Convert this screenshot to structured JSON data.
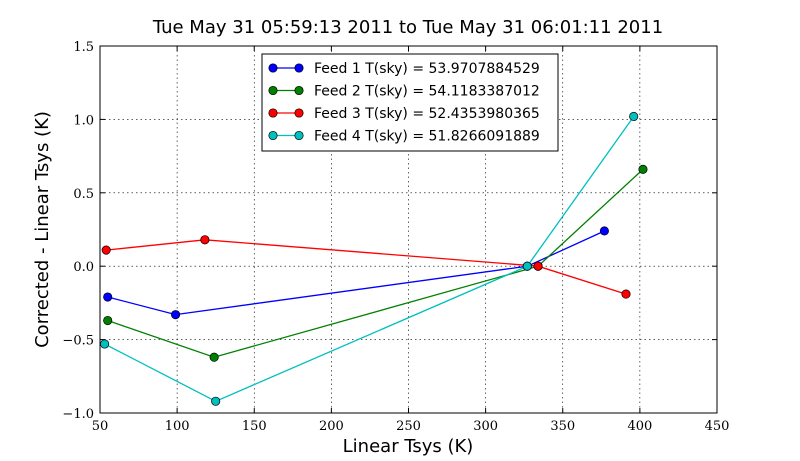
{
  "chart_data": {
    "type": "line",
    "title": "Tue May 31 05:59:13 2011 to Tue May 31 06:01:11 2011",
    "xlabel": "Linear Tsys (K)",
    "ylabel": "Corrected - Linear Tsys (K)",
    "xlim": [
      50,
      450
    ],
    "ylim": [
      -1.0,
      1.5
    ],
    "xticks": [
      50,
      100,
      150,
      200,
      250,
      300,
      350,
      400,
      450
    ],
    "xtick_labels": [
      "50",
      "100",
      "150",
      "200",
      "250",
      "300",
      "350",
      "400",
      "450"
    ],
    "yticks": [
      -1.0,
      -0.5,
      0.0,
      0.5,
      1.0,
      1.5
    ],
    "ytick_labels": [
      "−1.0",
      "−0.5",
      "0.0",
      "0.5",
      "1.0",
      "1.5"
    ],
    "grid": true,
    "legend_position": "top-center",
    "series": [
      {
        "name": "Feed 1 T(sky) = 53.9707884529",
        "color": "#0000ff",
        "x": [
          55,
          99,
          327,
          377
        ],
        "y": [
          -0.21,
          -0.33,
          0.0,
          0.24
        ]
      },
      {
        "name": "Feed 2 T(sky) = 54.1183387012",
        "color": "#008000",
        "x": [
          55,
          124,
          334,
          402
        ],
        "y": [
          -0.37,
          -0.62,
          0.0,
          0.66
        ]
      },
      {
        "name": "Feed 3 T(sky) = 52.4353980365",
        "color": "#ff0000",
        "x": [
          54,
          118,
          334,
          391
        ],
        "y": [
          0.11,
          0.18,
          0.0,
          -0.19
        ]
      },
      {
        "name": "Feed 4 T(sky) = 51.8266091889",
        "color": "#00bfbf",
        "x": [
          53,
          125,
          327,
          396
        ],
        "y": [
          -0.53,
          -0.92,
          0.0,
          1.02
        ]
      }
    ]
  }
}
